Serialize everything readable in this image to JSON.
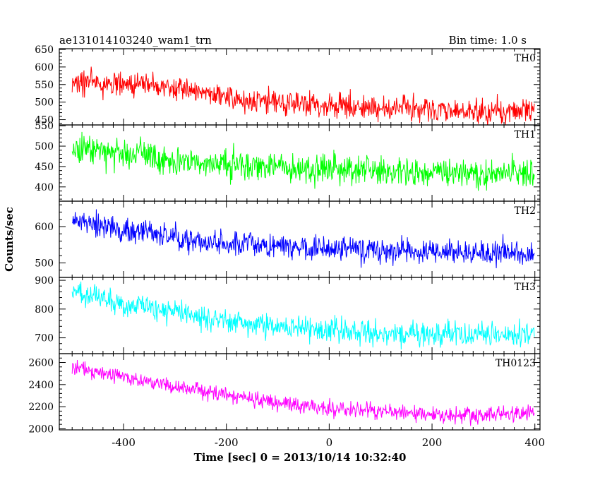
{
  "header": {
    "title": "ae131014103240_wam1_trn",
    "bin_time": "Bin time: 1.0 s"
  },
  "axes": {
    "ylabel": "Counts/sec",
    "xlabel": "Time [sec] 0 = 2013/10/14 10:32:40"
  },
  "chart_data": {
    "type": "line",
    "xlim": [
      -525,
      410
    ],
    "x_range": [
      -500,
      399
    ],
    "x_step": 1,
    "x_ticks": [
      -400,
      -200,
      0,
      200,
      400
    ],
    "x_tick_labels": [
      "-400",
      "-200",
      "0",
      "200",
      "400"
    ],
    "panels": [
      {
        "name": "TH0",
        "color": "#ff0000",
        "ylim": [
          435,
          652
        ],
        "y_ticks": [
          450,
          500,
          550,
          600,
          650
        ],
        "y_tick_labels": [
          "450",
          "500",
          "550",
          "600",
          "650"
        ],
        "trend": [
          [
            -500,
            560
          ],
          [
            -400,
            550
          ],
          [
            -300,
            540
          ],
          [
            -250,
            525
          ],
          [
            -200,
            510
          ],
          [
            0,
            490
          ],
          [
            100,
            485
          ],
          [
            200,
            478
          ],
          [
            300,
            472
          ],
          [
            399,
            478
          ]
        ],
        "noise": 25
      },
      {
        "name": "TH1",
        "color": "#00ff00",
        "ylim": [
          365,
          552
        ],
        "y_ticks": [
          400,
          450,
          500,
          550
        ],
        "y_tick_labels": [
          "400",
          "450",
          "500",
          "550"
        ],
        "trend": [
          [
            -500,
            495
          ],
          [
            -400,
            480
          ],
          [
            -300,
            465
          ],
          [
            -200,
            455
          ],
          [
            -100,
            450
          ],
          [
            0,
            445
          ],
          [
            200,
            435
          ],
          [
            399,
            432
          ]
        ],
        "noise": 25
      },
      {
        "name": "TH2",
        "color": "#0000ff",
        "ylim": [
          460,
          670
        ],
        "y_ticks": [
          500,
          600
        ],
        "y_tick_labels": [
          "500",
          "600"
        ],
        "trend": [
          [
            -500,
            620
          ],
          [
            -400,
            590
          ],
          [
            -300,
            570
          ],
          [
            -200,
            555
          ],
          [
            0,
            540
          ],
          [
            200,
            530
          ],
          [
            399,
            525
          ]
        ],
        "noise": 25
      },
      {
        "name": "TH3",
        "color": "#00ffff",
        "ylim": [
          645,
          910
        ],
        "y_ticks": [
          700,
          800,
          900
        ],
        "y_tick_labels": [
          "700",
          "800",
          "900"
        ],
        "trend": [
          [
            -500,
            860
          ],
          [
            -400,
            820
          ],
          [
            -300,
            785
          ],
          [
            -200,
            755
          ],
          [
            -100,
            735
          ],
          [
            0,
            725
          ],
          [
            200,
            710
          ],
          [
            399,
            715
          ]
        ],
        "noise": 30
      },
      {
        "name": "TH0123",
        "color": "#ff00ff",
        "ylim": [
          1990,
          2680
        ],
        "y_ticks": [
          2000,
          2200,
          2400,
          2600
        ],
        "y_tick_labels": [
          "2000",
          "2200",
          "2400",
          "2600"
        ],
        "trend": [
          [
            -500,
            2560
          ],
          [
            -400,
            2470
          ],
          [
            -300,
            2380
          ],
          [
            -200,
            2310
          ],
          [
            -100,
            2240
          ],
          [
            0,
            2180
          ],
          [
            100,
            2160
          ],
          [
            200,
            2130
          ],
          [
            300,
            2120
          ],
          [
            399,
            2145
          ]
        ],
        "noise": 50
      }
    ]
  }
}
